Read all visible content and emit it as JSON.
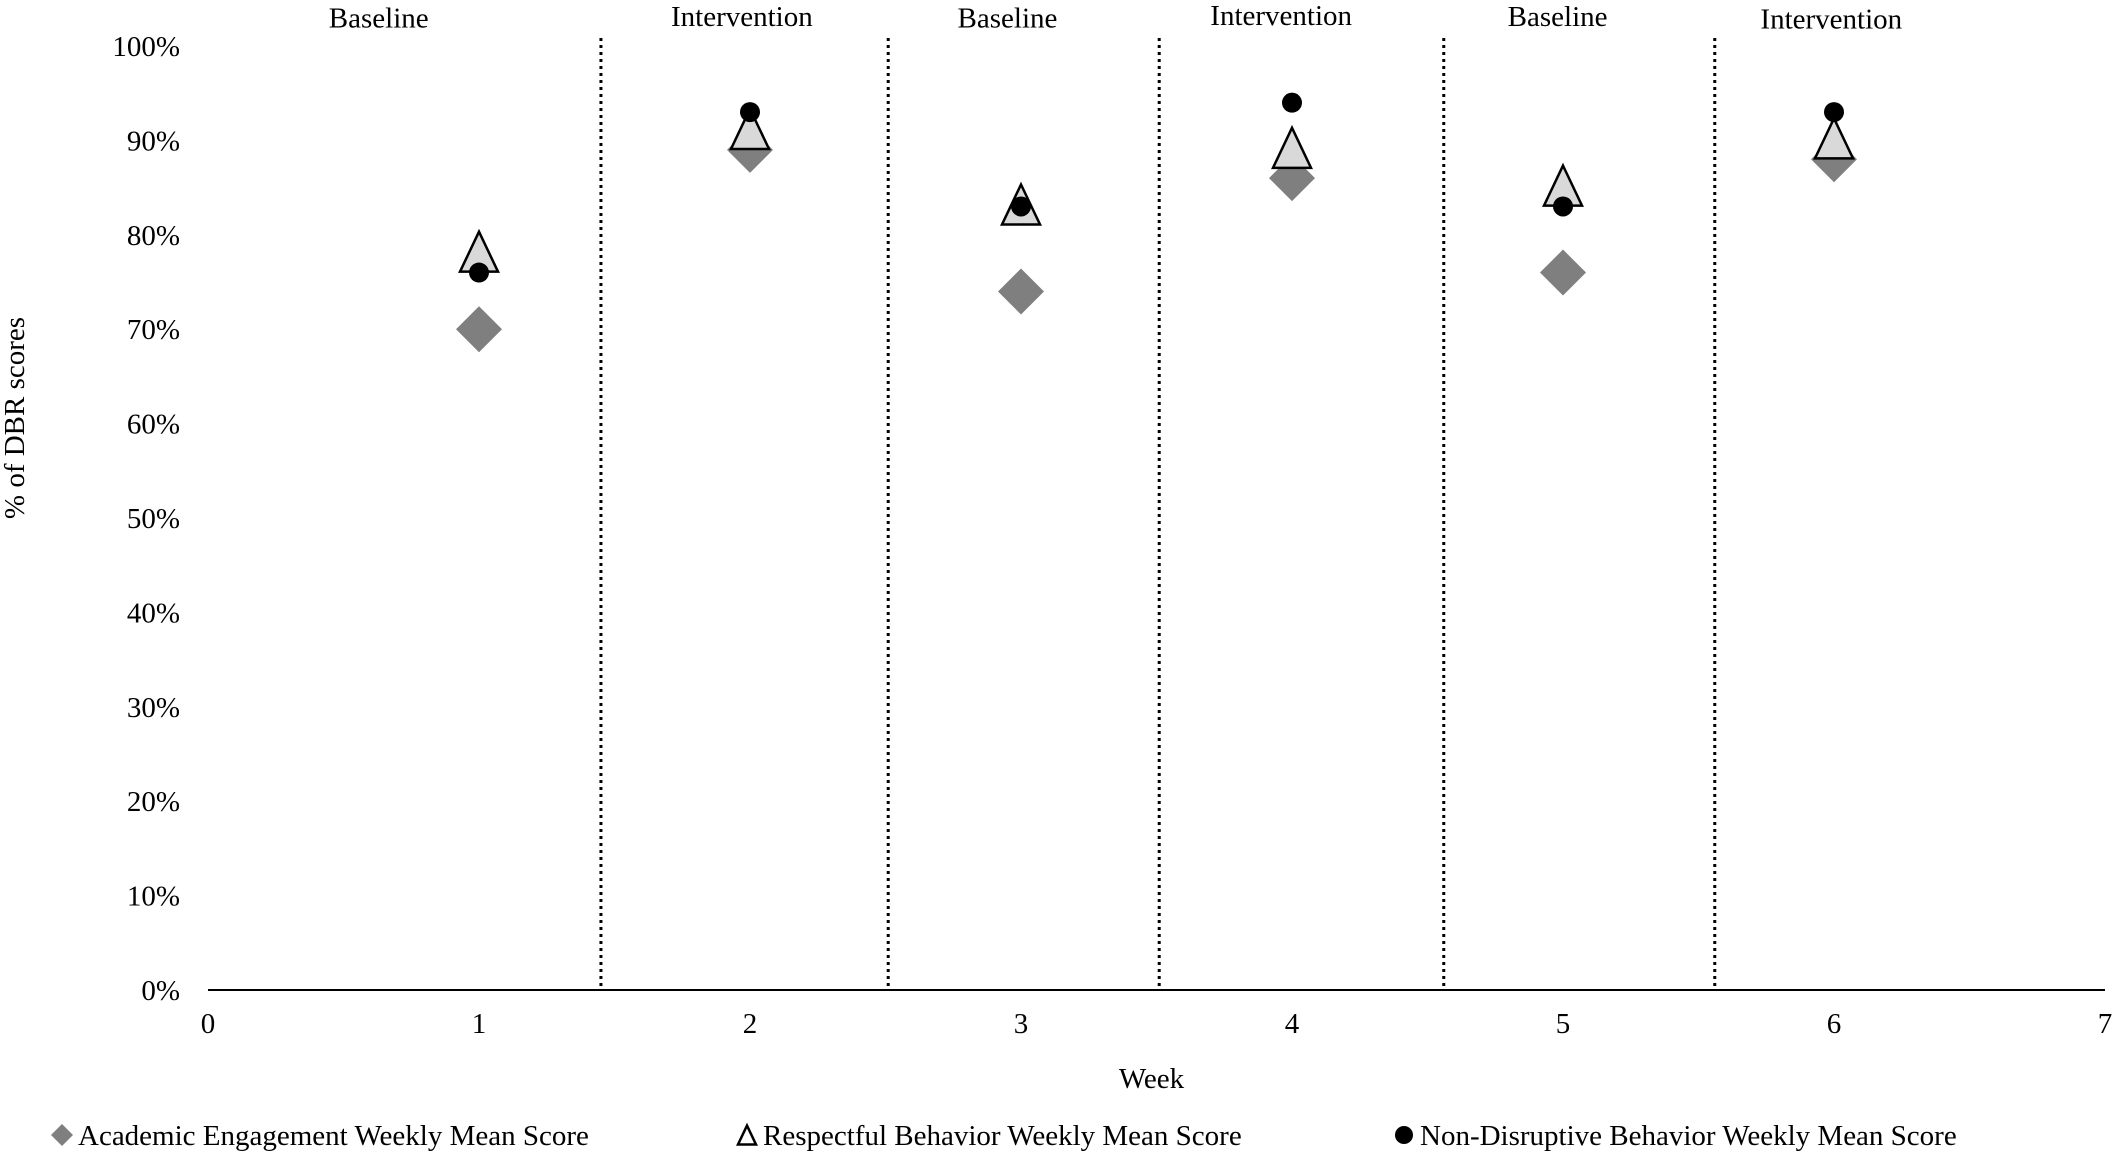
{
  "chart_data": {
    "type": "scatter",
    "title": "",
    "xlabel": "Week",
    "ylabel": "% of DBR scores",
    "xlim": [
      0,
      7
    ],
    "ylim": [
      0,
      100
    ],
    "x_ticks": [
      "0",
      "1",
      "2",
      "3",
      "4",
      "5",
      "6",
      "7"
    ],
    "y_ticks": [
      "0%",
      "10%",
      "20%",
      "30%",
      "40%",
      "50%",
      "60%",
      "70%",
      "80%",
      "90%",
      "100%"
    ],
    "grid": false,
    "legend_position": "bottom",
    "phase_lines_x": [
      1.45,
      2.51,
      3.51,
      4.56,
      5.56
    ],
    "phases": [
      {
        "label": "Baseline",
        "x": 0.63,
        "y": 103
      },
      {
        "label": "Intervention",
        "x": 1.97,
        "y": 103.2
      },
      {
        "label": "Baseline",
        "x": 2.95,
        "y": 103
      },
      {
        "label": "Intervention",
        "x": 3.96,
        "y": 103.3
      },
      {
        "label": "Baseline",
        "x": 4.98,
        "y": 103.2
      },
      {
        "label": "Intervention",
        "x": 5.99,
        "y": 102.9
      }
    ],
    "series": [
      {
        "name": "Academic Engagement Weekly Mean Score",
        "marker": "diamond",
        "color": "#7f7f7f",
        "x": [
          1,
          2,
          3,
          4,
          5,
          6
        ],
        "y": [
          70,
          89,
          74,
          86,
          76,
          88
        ]
      },
      {
        "name": "Respectful Behavior Weekly Mean Score",
        "marker": "triangle",
        "color": "#d9d9d9",
        "x": [
          1,
          2,
          3,
          4,
          5,
          6
        ],
        "y": [
          78,
          91,
          83,
          89,
          85,
          90
        ]
      },
      {
        "name": "Non-Disruptive Behavior Weekly Mean Score",
        "marker": "circle",
        "color": "#000000",
        "x": [
          1,
          2,
          3,
          4,
          5,
          6
        ],
        "y": [
          76,
          93,
          83,
          94,
          83,
          93
        ]
      }
    ]
  }
}
